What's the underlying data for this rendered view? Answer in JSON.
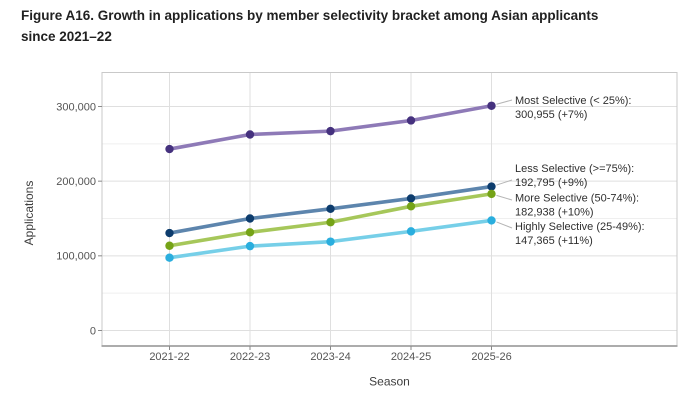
{
  "figure": {
    "title": "Figure A16. Growth in applications by member selectivity bracket among Asian applicants since 2021–22"
  },
  "chart_data": {
    "type": "line",
    "title": "Figure A16. Growth in applications by member selectivity bracket among Asian applicants since 2021–22",
    "xlabel": "Season",
    "ylabel": "Applications",
    "categories": [
      "2021-22",
      "2022-23",
      "2023-24",
      "2024-25",
      "2025-26"
    ],
    "y_ticks": [
      0,
      100000,
      200000,
      300000
    ],
    "y_tick_labels": [
      "0",
      "100,000",
      "200,000",
      "300,000"
    ],
    "y_minor_ticks": [
      50000,
      150000,
      250000
    ],
    "ylim": [
      -21000,
      347000
    ],
    "grid": "horizontal major+minor, vertical at each season",
    "legend_position": "right-annotations",
    "colors": {
      "leader_line": "#b5b5b5",
      "grid_major": "#dfdfdf",
      "grid_minor": "#efefef",
      "panel_border": "#c9c9c9",
      "axis_line": "#a0a0a0",
      "tick_mark": "#8a8a8a",
      "tick_label": "#545454",
      "axis_title": "#3e3e3e",
      "annotation_text": "#2f2f2f"
    },
    "series": [
      {
        "name": "Most Selective (< 25%)",
        "values": [
          243000,
          262500,
          267000,
          281270,
          300955
        ],
        "line_color": "#8e7ab7",
        "point_color": "#45317e",
        "annotation_line1": "Most Selective (< 25%):",
        "annotation_line2": "300,955 (+7%)"
      },
      {
        "name": "Less Selective (>=75%)",
        "values": [
          130500,
          150000,
          163000,
          176880,
          192795
        ],
        "line_color": "#5d85ad",
        "point_color": "#0d3c6d",
        "annotation_line1": "Less Selective (>=75%):",
        "annotation_line2": "192,795 (+9%)"
      },
      {
        "name": "More Selective (50-74%)",
        "values": [
          113500,
          131500,
          145000,
          166310,
          182938
        ],
        "line_color": "#a6c75a",
        "point_color": "#75a317",
        "annotation_line1": "More Selective (50-74%):",
        "annotation_line2": "182,938 (+10%)"
      },
      {
        "name": "Highly Selective (25-49%)",
        "values": [
          97500,
          113000,
          119000,
          132760,
          147365
        ],
        "line_color": "#76cfe8",
        "point_color": "#2aaede",
        "annotation_line1": "Highly Selective (25-49%):",
        "annotation_line2": "147,365 (+11%)"
      }
    ]
  }
}
